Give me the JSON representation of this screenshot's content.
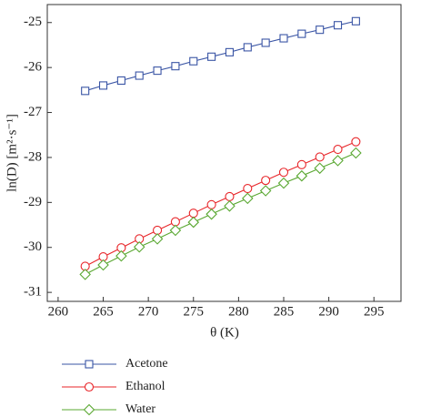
{
  "chart_data": {
    "type": "line",
    "x_label": "θ (K)",
    "y_label": "ln(D) [m²·s⁻¹]",
    "x": [
      263,
      265,
      267,
      269,
      271,
      273,
      275,
      277,
      279,
      281,
      283,
      285,
      287,
      289,
      291,
      293
    ],
    "series": [
      {
        "name": "Acetone",
        "color": "#3a55a5",
        "marker": "square",
        "values": [
          -26.52,
          -26.4,
          -26.29,
          -26.18,
          -26.07,
          -25.97,
          -25.86,
          -25.76,
          -25.66,
          -25.55,
          -25.45,
          -25.35,
          -25.25,
          -25.16,
          -25.06,
          -24.97
        ]
      },
      {
        "name": "Ethanol",
        "color": "#e8262a",
        "marker": "circle",
        "values": [
          -30.42,
          -30.21,
          -30.01,
          -29.81,
          -29.62,
          -29.43,
          -29.24,
          -29.05,
          -28.87,
          -28.69,
          -28.51,
          -28.33,
          -28.16,
          -27.99,
          -27.82,
          -27.65
        ]
      },
      {
        "name": "Water",
        "color": "#5aa832",
        "marker": "diamond",
        "values": [
          -30.6,
          -30.39,
          -30.19,
          -29.99,
          -29.81,
          -29.62,
          -29.44,
          -29.26,
          -29.08,
          -28.91,
          -28.74,
          -28.57,
          -28.41,
          -28.24,
          -28.07,
          -27.9
        ]
      }
    ],
    "xlim": [
      258.8,
      298
    ],
    "xticks": [
      260,
      265,
      270,
      275,
      280,
      285,
      290,
      295
    ],
    "ylim": [
      -31.2,
      -24.6
    ],
    "yticks": [
      -25,
      -26,
      -27,
      -28,
      -29,
      -30,
      -31
    ],
    "legend": "below"
  }
}
